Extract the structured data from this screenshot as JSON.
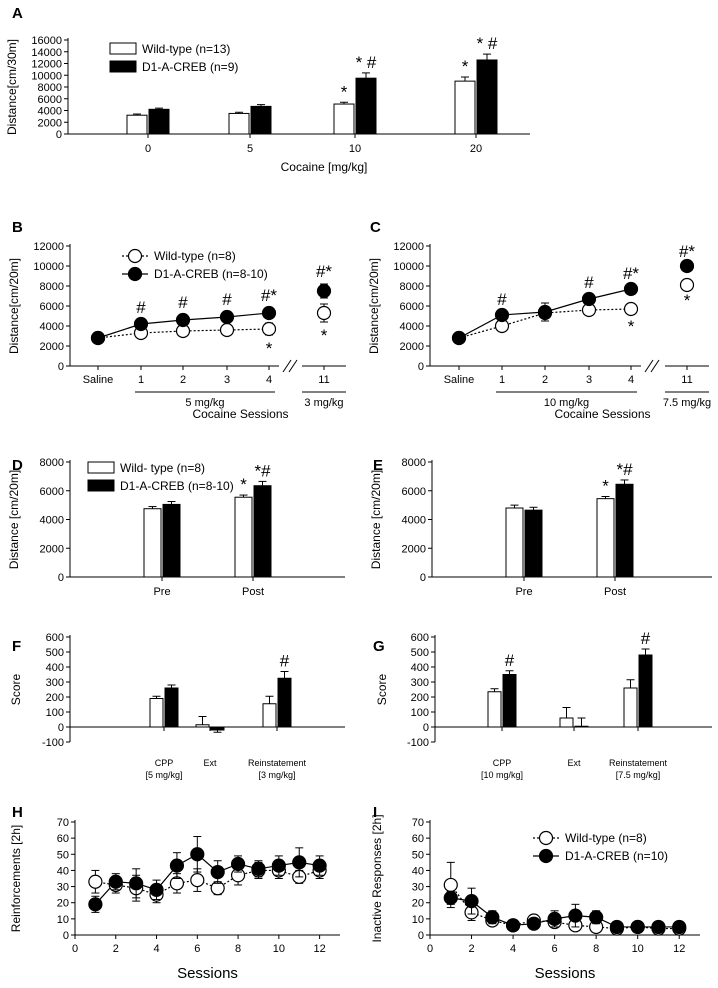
{
  "chart_data": [
    {
      "panel": "A",
      "type": "bar",
      "title": "",
      "xlabel": "Cocaine [mg/kg]",
      "ylabel": "Distance[cm/30m]",
      "ylim": [
        0,
        16000
      ],
      "yticks": [
        0,
        2000,
        4000,
        6000,
        8000,
        10000,
        12000,
        14000,
        16000
      ],
      "categories": [
        "0",
        "5",
        "10",
        "20"
      ],
      "series": [
        {
          "name": "Wild-type (n=13)",
          "fill": "open",
          "values": [
            3200,
            3500,
            5100,
            9000
          ],
          "errors": [
            200,
            200,
            300,
            700
          ]
        },
        {
          "name": "D1-A-CREB (n=9)",
          "fill": "filled",
          "values": [
            4200,
            4700,
            9500,
            12600
          ],
          "errors": [
            200,
            300,
            900,
            1000
          ]
        }
      ],
      "annotations": [
        {
          "text": "*",
          "series": 0,
          "index": 2
        },
        {
          "text": "*",
          "series": 0,
          "index": 3
        },
        {
          "text": "* #",
          "series": 1,
          "index": 2
        },
        {
          "text": "* #",
          "series": 1,
          "index": 3
        }
      ]
    },
    {
      "panel": "B",
      "type": "line",
      "xlabel": "Cocaine Sessions",
      "ylabel": "Distance[cm/20m]",
      "ylim": [
        0,
        12000
      ],
      "yticks": [
        0,
        2000,
        4000,
        6000,
        8000,
        10000,
        12000
      ],
      "x_labels": [
        "Saline",
        "1",
        "2",
        "3",
        "4",
        "11"
      ],
      "dose_labels": [
        "5 mg/kg",
        "3 mg/kg"
      ],
      "series": [
        {
          "name": "Wild-type (n=8)",
          "marker": "open",
          "values": [
            2800,
            3300,
            3500,
            3600,
            3700,
            5300
          ],
          "errors": [
            200,
            300,
            300,
            300,
            600,
            900
          ]
        },
        {
          "name": "D1-A-CREB (n=8-10)",
          "marker": "filled",
          "values": [
            2800,
            4200,
            4600,
            4900,
            5300,
            7500
          ],
          "errors": [
            200,
            400,
            500,
            500,
            500,
            700
          ]
        }
      ],
      "annotations": [
        {
          "text": "#",
          "index": 1,
          "series": 1
        },
        {
          "text": "#",
          "index": 2,
          "series": 1
        },
        {
          "text": "#",
          "index": 3,
          "series": 1
        },
        {
          "text": "#*",
          "index": 4,
          "series": 1
        },
        {
          "text": "#*",
          "index": 5,
          "series": 1
        },
        {
          "text": "*",
          "index": 4,
          "series": 0,
          "below": true
        },
        {
          "text": "*",
          "index": 5,
          "series": 0,
          "below": true
        }
      ]
    },
    {
      "panel": "C",
      "type": "line",
      "xlabel": "Cocaine Sessions",
      "ylabel": "Distance[cm/20m]",
      "ylim": [
        0,
        12000
      ],
      "yticks": [
        0,
        2000,
        4000,
        6000,
        8000,
        10000,
        12000
      ],
      "x_labels": [
        "Saline",
        "1",
        "2",
        "3",
        "4",
        "11"
      ],
      "dose_labels": [
        "10 mg/kg",
        "7.5 mg/kg"
      ],
      "series": [
        {
          "name": "Wild-type",
          "marker": "open",
          "values": [
            2800,
            4000,
            5300,
            5600,
            5700,
            8100
          ],
          "errors": [
            200,
            300,
            400,
            300,
            400,
            200
          ]
        },
        {
          "name": "D1-A-CREB",
          "marker": "filled",
          "values": [
            2800,
            5100,
            5400,
            6700,
            7700,
            10000
          ],
          "errors": [
            200,
            300,
            900,
            400,
            300,
            200
          ]
        }
      ],
      "annotations": [
        {
          "text": "#",
          "index": 1,
          "series": 1
        },
        {
          "text": "#",
          "index": 3,
          "series": 1
        },
        {
          "text": "#*",
          "index": 4,
          "series": 1
        },
        {
          "text": "#*",
          "index": 5,
          "series": 1
        },
        {
          "text": "*",
          "index": 4,
          "series": 0,
          "below": true
        },
        {
          "text": "*",
          "index": 5,
          "series": 0,
          "below": true
        }
      ]
    },
    {
      "panel": "D",
      "type": "bar",
      "xlabel": "",
      "ylabel": "Distance [cm/20m]",
      "ylim": [
        0,
        8000
      ],
      "yticks": [
        0,
        2000,
        4000,
        6000,
        8000
      ],
      "categories": [
        "Pre",
        "Post"
      ],
      "series": [
        {
          "name": "Wild- type (n=8)",
          "fill": "open",
          "values": [
            4750,
            5550
          ],
          "errors": [
            150,
            150
          ]
        },
        {
          "name": "D1-A-CREB (n=8-10)",
          "fill": "filled",
          "values": [
            5050,
            6350
          ],
          "errors": [
            200,
            300
          ]
        }
      ],
      "annotations": [
        {
          "text": "*",
          "series": 0,
          "index": 1
        },
        {
          "text": "*#",
          "series": 1,
          "index": 1
        }
      ]
    },
    {
      "panel": "E",
      "type": "bar",
      "xlabel": "",
      "ylabel": "Distance [cm/20m]",
      "ylim": [
        0,
        8000
      ],
      "yticks": [
        0,
        2000,
        4000,
        6000,
        8000
      ],
      "categories": [
        "Pre",
        "Post"
      ],
      "series": [
        {
          "name": "Wild-type",
          "fill": "open",
          "values": [
            4800,
            5450
          ],
          "errors": [
            200,
            150
          ]
        },
        {
          "name": "D1-A-CREB",
          "fill": "filled",
          "values": [
            4650,
            6450
          ],
          "errors": [
            200,
            300
          ]
        }
      ],
      "annotations": [
        {
          "text": "*",
          "series": 0,
          "index": 1
        },
        {
          "text": "*#",
          "series": 1,
          "index": 1
        }
      ]
    },
    {
      "panel": "F",
      "type": "bar",
      "xlabel": "",
      "ylabel": "Score",
      "ylim": [
        -100,
        600
      ],
      "yticks": [
        -100,
        0,
        100,
        200,
        300,
        400,
        500,
        600
      ],
      "categories": [
        "CPP",
        "Ext",
        "Reinstatement"
      ],
      "sublabels": [
        "[5 mg/kg]",
        "",
        "[3 mg/kg]"
      ],
      "series": [
        {
          "name": "Wild-type",
          "fill": "open",
          "values": [
            190,
            15,
            155
          ],
          "errors": [
            15,
            55,
            50
          ]
        },
        {
          "name": "D1-A-CREB",
          "fill": "filled",
          "values": [
            260,
            -20,
            325
          ],
          "errors": [
            20,
            15,
            45
          ]
        }
      ],
      "annotations": [
        {
          "text": "#",
          "series": 1,
          "index": 2
        }
      ]
    },
    {
      "panel": "G",
      "type": "bar",
      "xlabel": "",
      "ylabel": "Score",
      "ylim": [
        -100,
        600
      ],
      "yticks": [
        -100,
        0,
        100,
        200,
        300,
        400,
        500,
        600
      ],
      "categories": [
        "CPP",
        "Ext",
        "Reinstatement"
      ],
      "sublabels": [
        "[10 mg/kg]",
        "",
        "[7.5 mg/kg]"
      ],
      "series": [
        {
          "name": "Wild-type",
          "fill": "open",
          "values": [
            235,
            60,
            260
          ],
          "errors": [
            20,
            70,
            55
          ]
        },
        {
          "name": "D1-A-CREB",
          "fill": "filled",
          "values": [
            350,
            5,
            480
          ],
          "errors": [
            25,
            55,
            40
          ]
        }
      ],
      "annotations": [
        {
          "text": "#",
          "series": 1,
          "index": 0
        },
        {
          "text": "#",
          "series": 1,
          "index": 2
        }
      ]
    },
    {
      "panel": "H",
      "type": "line",
      "xlabel": "Sessions",
      "ylabel": "Reinforcements [2h]",
      "xlim": [
        0,
        13
      ],
      "xticks": [
        0,
        2,
        4,
        6,
        8,
        10,
        12
      ],
      "ylim": [
        0,
        70
      ],
      "yticks": [
        0,
        10,
        20,
        30,
        40,
        50,
        60,
        70
      ],
      "x": [
        1,
        2,
        3,
        4,
        5,
        6,
        7,
        8,
        9,
        10,
        11,
        12
      ],
      "series": [
        {
          "name": "Wild-type",
          "marker": "open",
          "values": [
            33,
            31,
            29,
            25,
            32,
            34,
            29,
            37,
            40,
            40,
            36,
            40
          ],
          "errors": [
            7,
            5,
            8,
            5,
            6,
            7,
            4,
            6,
            5,
            5,
            4,
            5
          ]
        },
        {
          "name": "D1-A-CREB",
          "marker": "filled",
          "values": [
            19,
            33,
            32,
            28,
            43,
            50,
            39,
            44,
            41,
            43,
            45,
            43
          ],
          "errors": [
            5,
            5,
            9,
            6,
            8,
            11,
            7,
            5,
            5,
            6,
            9,
            6
          ]
        }
      ]
    },
    {
      "panel": "I",
      "type": "line",
      "xlabel": "Sessions",
      "ylabel": "Inactive Responses [2h]",
      "xlim": [
        0,
        13
      ],
      "xticks": [
        0,
        2,
        4,
        6,
        8,
        10,
        12
      ],
      "ylim": [
        0,
        70
      ],
      "yticks": [
        0,
        10,
        20,
        30,
        40,
        50,
        60,
        70
      ],
      "x": [
        1,
        2,
        3,
        4,
        5,
        6,
        7,
        8,
        9,
        10,
        11,
        12
      ],
      "series": [
        {
          "name": "Wild-type (n=8)",
          "marker": "open",
          "values": [
            31,
            14,
            9,
            6,
            9,
            8,
            6,
            5,
            4,
            5,
            4,
            4
          ],
          "errors": [
            14,
            5,
            3,
            2,
            3,
            3,
            3,
            2,
            2,
            2,
            2,
            2
          ]
        },
        {
          "name": "D1-A-CREB (n=10)",
          "marker": "filled",
          "values": [
            23,
            21,
            11,
            6,
            7,
            10,
            12,
            11,
            5,
            5,
            5,
            5
          ],
          "errors": [
            4,
            8,
            4,
            2,
            2,
            5,
            7,
            4,
            2,
            2,
            2,
            2
          ]
        }
      ]
    }
  ]
}
